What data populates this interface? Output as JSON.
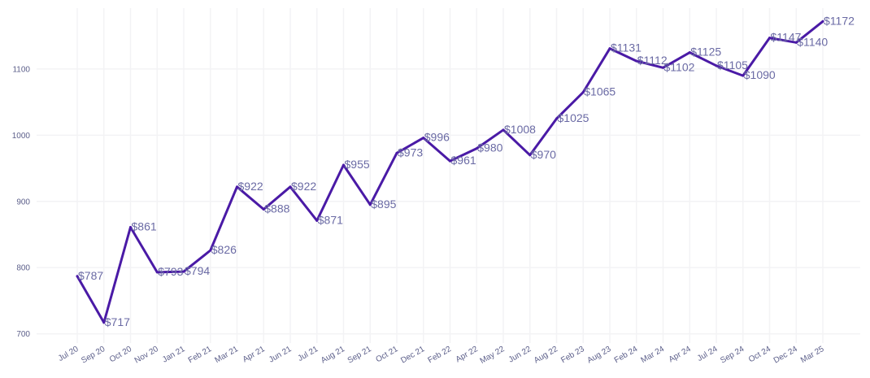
{
  "chart_data": {
    "type": "line",
    "title": "",
    "xlabel": "",
    "ylabel": "",
    "ylim": [
      686,
      1192
    ],
    "yticks": [
      700,
      800,
      900,
      1000,
      1100
    ],
    "grid": true,
    "legend": "none",
    "line_color": "#4a1aa6",
    "label_color": "#6a6aa4",
    "series": [
      {
        "categories": [
          "Jul 20",
          "Sep 20",
          "Oct 20",
          "Nov 20",
          "Jan 21",
          "Feb 21",
          "Mar 21",
          "Apr 21",
          "Jun 21",
          "Jul 21",
          "Aug 21",
          "Sep 21",
          "Oct 21",
          "Dec 21",
          "Feb 22",
          "Apr 22",
          "May 22",
          "Jun 22",
          "Aug 22",
          "Feb 23",
          "Aug 23",
          "Feb 24",
          "Mar 24",
          "Apr 24",
          "Jul 24",
          "Sep 24",
          "Oct 24",
          "Dec 24",
          "Mar 25"
        ],
        "values": [
          787,
          717,
          861,
          793,
          794,
          826,
          922,
          888,
          922,
          871,
          955,
          895,
          973,
          996,
          961,
          980,
          1008,
          970,
          1025,
          1065,
          1131,
          1112,
          1102,
          1125,
          1105,
          1090,
          1147,
          1140,
          1172
        ],
        "labels": [
          "$787",
          "$717",
          "$861",
          "$793",
          "$794",
          "$826",
          "$922",
          "$888",
          "$922",
          "$871",
          "$955",
          "$895",
          "$973",
          "$996",
          "$961",
          "$980",
          "$1008",
          "$970",
          "$1025",
          "$1065",
          "$1131",
          "$1112",
          "$1102",
          "$1125",
          "$1105",
          "$1090",
          "$1147",
          "$1140",
          "$1172"
        ]
      }
    ]
  }
}
